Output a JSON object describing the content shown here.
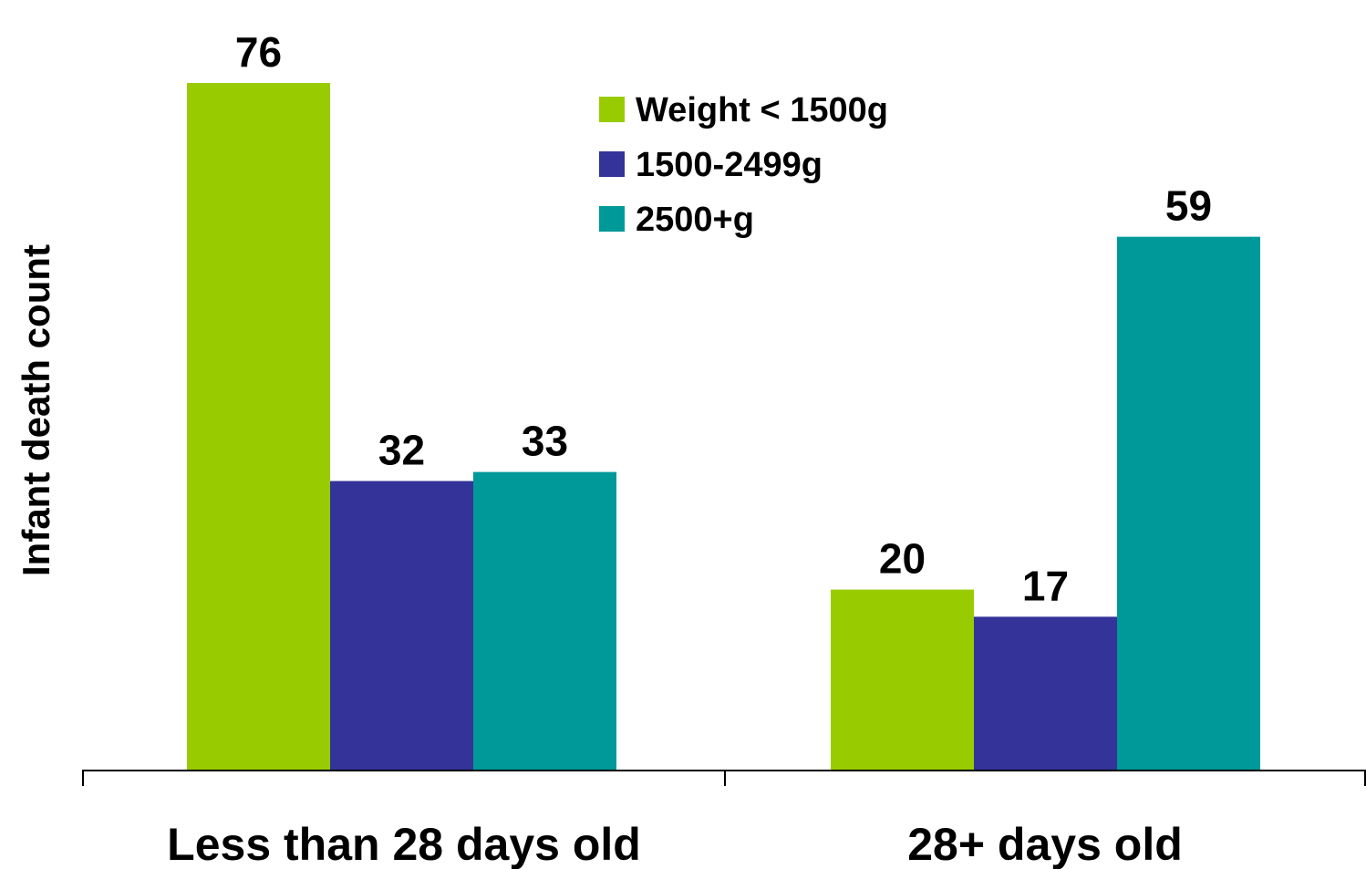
{
  "chart_data": {
    "type": "bar",
    "title": "",
    "xlabel": "",
    "ylabel": "Infant death count",
    "categories": [
      "Less than 28 days old",
      "28+ days old"
    ],
    "series": [
      {
        "name": "Weight < 1500g",
        "color": "#99CC00",
        "values": [
          76,
          20
        ]
      },
      {
        "name": "1500-2499g",
        "color": "#333399",
        "values": [
          32,
          17
        ]
      },
      {
        "name": "2500+g",
        "color": "#009999",
        "values": [
          33,
          59
        ]
      }
    ],
    "ylim": [
      0,
      76
    ],
    "grid": false,
    "legend_position": "top-center",
    "data_labels": true
  }
}
